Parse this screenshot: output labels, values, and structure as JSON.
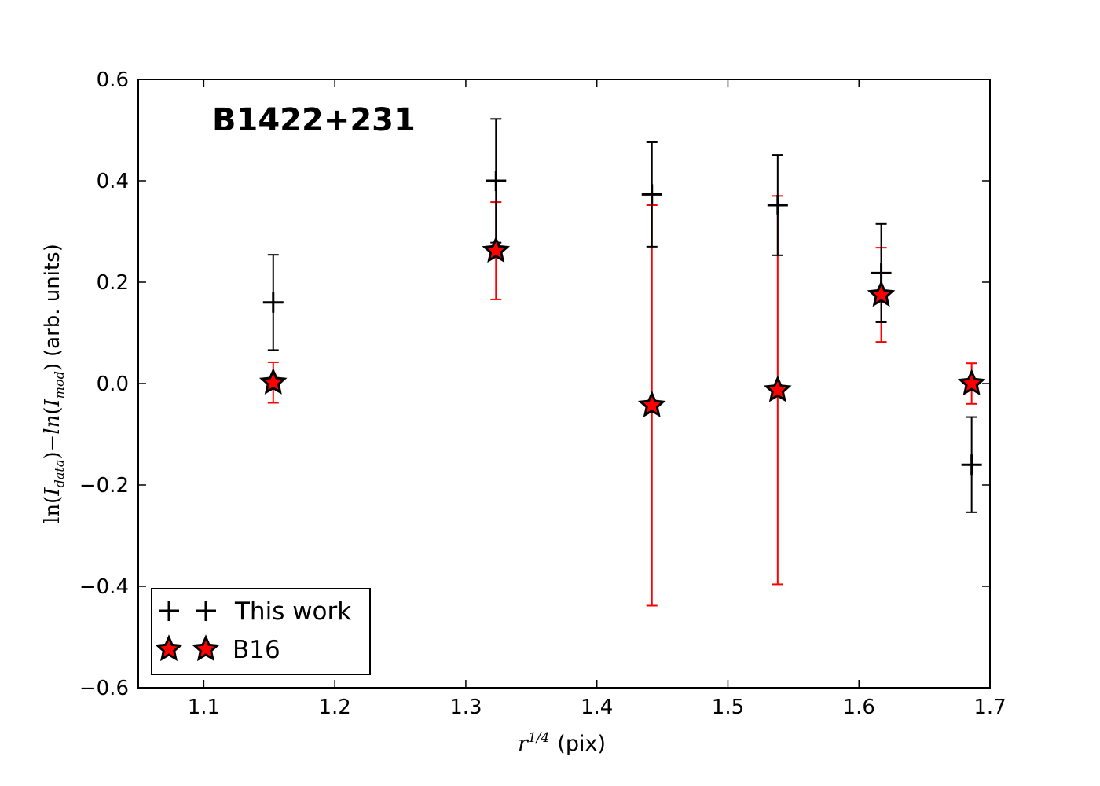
{
  "chart_data": {
    "type": "scatter",
    "annotation": "B1422+231",
    "xlabel": {
      "math": "r",
      "sup": "1/4",
      "units": "(pix)"
    },
    "ylabel": {
      "prefix": "ln(",
      "term1": "I",
      "sub1": "data",
      "middle": ")−",
      "ln2": "ln",
      "term2": "I",
      "sub2": "mod",
      "suffix": ")",
      "units": "(arb. units)"
    },
    "xlim": [
      1.05,
      1.7
    ],
    "ylim": [
      -0.6,
      0.6
    ],
    "xticks": [
      "1.1",
      "1.2",
      "1.3",
      "1.4",
      "1.5",
      "1.6",
      "1.7"
    ],
    "yticks": [
      "−0.6",
      "−0.4",
      "−0.2",
      "0.0",
      "0.2",
      "0.4",
      "0.6"
    ],
    "legend_position": "lower-left",
    "series": [
      {
        "name": "This work",
        "marker": "plus",
        "color": "#000000",
        "errcolor": "#000000",
        "x": [
          1.153,
          1.323,
          1.442,
          1.538,
          1.617,
          1.686
        ],
        "y": [
          0.16,
          0.4,
          0.373,
          0.352,
          0.218,
          -0.16
        ],
        "yerr": [
          0.094,
          0.122,
          0.103,
          0.099,
          0.097,
          0.094
        ]
      },
      {
        "name": "B16",
        "marker": "star",
        "color": "#ff0000",
        "edgecolor": "#000000",
        "errcolor": "#ff0000",
        "x": [
          1.153,
          1.323,
          1.442,
          1.538,
          1.617,
          1.686
        ],
        "y": [
          0.002,
          0.262,
          -0.043,
          -0.013,
          0.175,
          0.0
        ],
        "yerr": [
          0.04,
          0.096,
          0.395,
          0.383,
          0.093,
          0.04
        ]
      }
    ]
  }
}
